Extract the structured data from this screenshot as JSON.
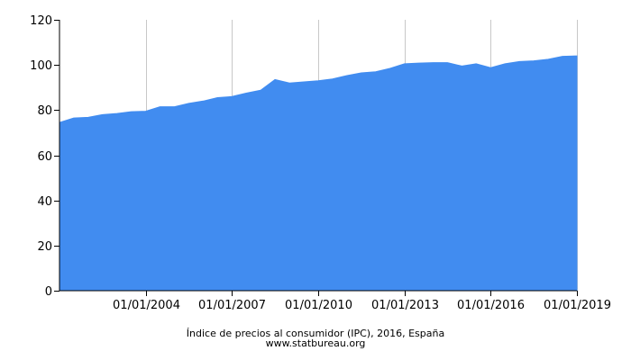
{
  "chart_data": {
    "type": "area",
    "title": "",
    "xlabel": "",
    "ylabel": "",
    "x_range": [
      "2001-01-01",
      "2019-01-01"
    ],
    "ylim": [
      0,
      120
    ],
    "y_ticks": [
      0,
      20,
      40,
      60,
      80,
      100,
      120
    ],
    "x_ticks": [
      "2004-01-01",
      "2007-01-01",
      "2010-01-01",
      "2013-01-01",
      "2016-01-01",
      "2019-01-01"
    ],
    "x_tick_labels": [
      "01/01/2004",
      "01/01/2007",
      "01/01/2010",
      "01/01/2013",
      "01/01/2016",
      "01/01/2019"
    ],
    "grid": {
      "vertical": true,
      "horizontal": false
    },
    "series": [
      {
        "color": "#418cf0",
        "x": [
          "2001-01-01",
          "2001-07-01",
          "2002-01-01",
          "2002-07-01",
          "2003-01-01",
          "2003-07-01",
          "2004-01-01",
          "2004-07-01",
          "2005-01-01",
          "2005-07-01",
          "2006-01-01",
          "2006-07-01",
          "2007-01-01",
          "2007-07-01",
          "2008-01-01",
          "2008-07-01",
          "2009-01-01",
          "2009-07-01",
          "2010-01-01",
          "2010-07-01",
          "2011-01-01",
          "2011-07-01",
          "2012-01-01",
          "2012-07-01",
          "2013-01-01",
          "2013-07-01",
          "2014-01-01",
          "2014-07-01",
          "2015-01-01",
          "2015-07-01",
          "2016-01-01",
          "2016-07-01",
          "2017-01-01",
          "2017-07-01",
          "2018-01-01",
          "2018-07-01",
          "2019-01-01"
        ],
        "values": [
          74.5,
          76.5,
          76.8,
          78.0,
          78.5,
          79.3,
          79.5,
          81.5,
          81.5,
          83.0,
          84.0,
          85.5,
          86.0,
          87.5,
          88.8,
          93.5,
          92.0,
          92.5,
          93.0,
          93.8,
          95.3,
          96.5,
          97.0,
          98.5,
          100.5,
          100.8,
          101.0,
          101.0,
          99.5,
          100.5,
          98.8,
          100.5,
          101.5,
          101.8,
          102.5,
          103.8,
          104.0
        ]
      }
    ],
    "caption": "Índice de precios al consumidor (IPC), 2016, España",
    "source": "www.statbureau.org"
  }
}
